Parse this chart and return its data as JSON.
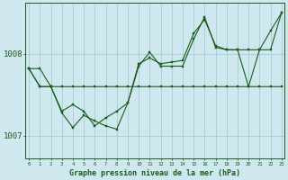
{
  "title": "Graphe pression niveau de la mer (hPa)",
  "background_color": "#cfe8f0",
  "grid_color": "#a8cdd4",
  "line_color": "#1a5c1a",
  "hours": [
    0,
    1,
    2,
    3,
    4,
    5,
    6,
    7,
    8,
    9,
    10,
    11,
    12,
    13,
    14,
    15,
    16,
    17,
    18,
    19,
    20,
    21,
    22,
    23
  ],
  "series1": [
    1007.82,
    1007.82,
    1007.6,
    1007.6,
    1007.6,
    1007.6,
    1007.6,
    1007.6,
    1007.6,
    1007.6,
    1007.6,
    1007.6,
    1007.6,
    1007.6,
    1007.6,
    1007.6,
    1007.6,
    1007.6,
    1007.6,
    1007.6,
    1007.6,
    1007.6,
    1007.6,
    1007.6
  ],
  "series2": [
    1007.82,
    1007.6,
    1007.6,
    1007.28,
    1007.1,
    1007.25,
    1007.18,
    1007.12,
    1007.08,
    1007.4,
    1007.88,
    1007.95,
    1007.88,
    1007.9,
    1007.92,
    1008.25,
    1008.42,
    1008.1,
    1008.05,
    1008.05,
    1007.6,
    1008.05,
    1008.28,
    1008.5
  ],
  "series3": [
    1007.82,
    1007.6,
    1007.6,
    1007.3,
    1007.38,
    1007.3,
    1007.12,
    1007.22,
    1007.3,
    1007.4,
    1007.85,
    1008.02,
    1007.85,
    1007.85,
    1007.85,
    1008.18,
    1008.45,
    1008.08,
    1008.05,
    1008.05,
    1008.05,
    1008.05,
    1008.05,
    1008.5
  ],
  "yticks": [
    1007.0,
    1008.0
  ],
  "ylim": [
    1006.72,
    1008.62
  ],
  "xlim": [
    -0.3,
    23.3
  ]
}
